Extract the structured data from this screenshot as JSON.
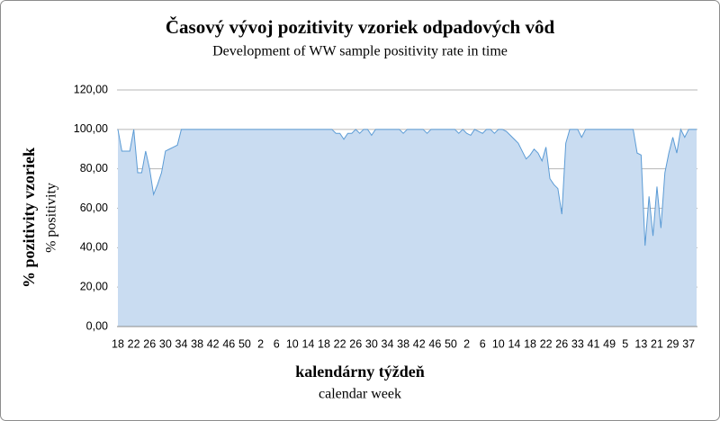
{
  "chart_data": {
    "type": "area",
    "title": "Časový vývoj pozitivity vzoriek odpadových vôd",
    "subtitle": "Development of WW sample positivity rate in time",
    "y_label": "% pozitivity vzoriek",
    "y_sublabel": "% positivity",
    "x_label": "kalendárny týždeň",
    "x_sublabel": "calendar week",
    "categories": [
      "18",
      null,
      null,
      null,
      "22",
      null,
      null,
      null,
      "26",
      null,
      null,
      null,
      "30",
      null,
      null,
      null,
      "34",
      null,
      null,
      null,
      "38",
      null,
      null,
      null,
      "42",
      null,
      null,
      null,
      "46",
      null,
      null,
      null,
      "50",
      null,
      null,
      null,
      "2",
      null,
      null,
      null,
      "6",
      null,
      null,
      null,
      "10",
      null,
      null,
      null,
      "14",
      null,
      null,
      null,
      "18",
      null,
      null,
      null,
      "22",
      null,
      null,
      null,
      "26",
      null,
      null,
      null,
      "30",
      null,
      null,
      null,
      "34",
      null,
      null,
      null,
      "38",
      null,
      null,
      null,
      "42",
      null,
      null,
      null,
      "46",
      null,
      null,
      null,
      "50",
      null,
      null,
      null,
      "2",
      null,
      null,
      null,
      "6",
      null,
      null,
      null,
      "10",
      null,
      null,
      null,
      "14",
      null,
      null,
      null,
      "18",
      null,
      null,
      null,
      "22",
      null,
      null,
      null,
      "26",
      null,
      null,
      null,
      "33",
      null,
      null,
      null,
      "41",
      null,
      null,
      null,
      "49",
      null,
      null,
      null,
      "5",
      null,
      null,
      null,
      "13",
      null,
      null,
      null,
      "21",
      null,
      null,
      null,
      "29",
      null,
      null,
      null,
      "37",
      null,
      null
    ],
    "values": [
      100,
      89,
      89,
      89,
      100,
      78,
      78,
      89,
      80,
      67,
      72,
      78,
      89,
      90,
      91,
      92,
      100,
      100,
      100,
      100,
      100,
      100,
      100,
      100,
      100,
      100,
      100,
      100,
      100,
      100,
      100,
      100,
      100,
      100,
      100,
      100,
      100,
      100,
      100,
      100,
      100,
      100,
      100,
      100,
      100,
      100,
      100,
      100,
      100,
      100,
      100,
      100,
      100,
      100,
      100,
      98,
      98,
      95,
      98,
      98,
      100,
      98,
      100,
      100,
      97,
      100,
      100,
      100,
      100,
      100,
      100,
      100,
      98,
      100,
      100,
      100,
      100,
      100,
      98,
      100,
      100,
      100,
      100,
      100,
      100,
      100,
      98,
      100,
      98,
      97,
      100,
      99,
      98,
      100,
      100,
      98,
      100,
      100,
      99,
      97,
      95,
      93,
      89,
      85,
      87,
      90,
      88,
      84,
      91,
      75,
      72,
      70,
      57,
      93,
      100,
      100,
      100,
      96,
      100,
      100,
      100,
      100,
      100,
      100,
      100,
      100,
      100,
      100,
      100,
      100,
      100,
      88,
      87,
      41,
      66,
      46,
      71,
      50,
      78,
      88,
      96,
      88,
      100,
      96,
      100,
      100,
      100
    ],
    "color": "#5b9bd5",
    "fill_color": "#c9dcf1",
    "ylim": [
      0,
      120
    ],
    "yticks": [
      {
        "value": 0,
        "label": "0,00"
      },
      {
        "value": 20,
        "label": "20,00"
      },
      {
        "value": 40,
        "label": "40,00"
      },
      {
        "value": 60,
        "label": "60,00"
      },
      {
        "value": 80,
        "label": "80,00"
      },
      {
        "value": 100,
        "label": "100,00"
      },
      {
        "value": 120,
        "label": "120,00"
      }
    ],
    "grid": true
  }
}
